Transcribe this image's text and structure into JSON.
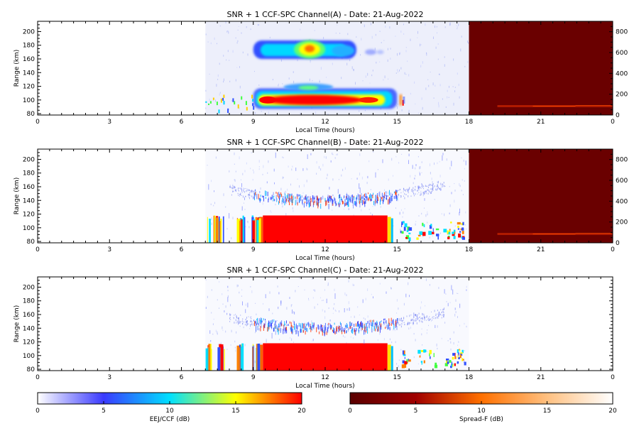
{
  "chart_data": [
    {
      "type": "heatmap",
      "title": "SNR + 1 CCF-SPC Channel(A) - Date: 21-Aug-2022",
      "xlabel": "Local Time (hours)",
      "ylabel": "Range (km)",
      "xlim": [
        0,
        24
      ],
      "ylim": [
        78,
        215
      ],
      "x_ticks": [
        "0",
        "3",
        "6",
        "9",
        "12",
        "15",
        "18",
        "21",
        "0"
      ],
      "y_ticks": [
        "80",
        "100",
        "120",
        "140",
        "160",
        "180",
        "200"
      ],
      "right_axis": {
        "ylim": [
          0,
          900
        ],
        "ticks": [
          "0",
          "200",
          "400",
          "600",
          "800"
        ]
      },
      "colormap": "EEJ/CCF (dB)",
      "spread_f_block": {
        "x_start": 18,
        "x_end": 24
      },
      "features": [
        {
          "kind": "eej_layer",
          "x": [
            7.0,
            15.3
          ],
          "y": [
            87,
            115
          ],
          "peak_db": 20
        },
        {
          "kind": "upper_cloud",
          "x": [
            9.0,
            14.3
          ],
          "y": [
            160,
            190
          ],
          "peak_db": 18,
          "peak_x": 11.3
        }
      ]
    },
    {
      "type": "heatmap",
      "title": "SNR + 1 CCF-SPC Channel(B) - Date: 21-Aug-2022",
      "xlabel": "Local Time (hours)",
      "ylabel": "Range (km)",
      "xlim": [
        0,
        24
      ],
      "ylim": [
        78,
        215
      ],
      "x_ticks": [
        "0",
        "3",
        "6",
        "9",
        "12",
        "15",
        "18",
        "21",
        "0"
      ],
      "y_ticks": [
        "80",
        "100",
        "120",
        "140",
        "160",
        "180",
        "200"
      ],
      "right_axis": {
        "ylim": [
          0,
          900
        ],
        "ticks": [
          "0",
          "200",
          "400",
          "600",
          "800"
        ]
      },
      "colormap": "EEJ/CCF (dB)",
      "spread_f_block": {
        "x_start": 18,
        "x_end": 24
      },
      "features": [
        {
          "kind": "eej_layer",
          "x": [
            7.0,
            17.8
          ],
          "y": [
            82,
            118
          ],
          "peak_db": 20
        },
        {
          "kind": "echo_arc",
          "x": [
            8.0,
            17.0
          ],
          "y": [
            135,
            165
          ]
        }
      ]
    },
    {
      "type": "heatmap",
      "title": "SNR + 1 CCF-SPC Channel(C) - Date: 21-Aug-2022",
      "xlabel": "Local Time (hours)",
      "ylabel": "Range (km)",
      "xlim": [
        0,
        24
      ],
      "ylim": [
        78,
        215
      ],
      "x_ticks": [
        "0",
        "3",
        "6",
        "9",
        "12",
        "15",
        "18",
        "21",
        "0"
      ],
      "y_ticks": [
        "80",
        "100",
        "120",
        "140",
        "160",
        "180",
        "200"
      ],
      "colormap": "EEJ/CCF (dB)",
      "features": [
        {
          "kind": "eej_layer",
          "x": [
            7.0,
            17.8
          ],
          "y": [
            82,
            118
          ],
          "peak_db": 20
        },
        {
          "kind": "echo_arc",
          "x": [
            8.0,
            17.0
          ],
          "y": [
            135,
            165
          ]
        }
      ]
    }
  ],
  "colorbars": [
    {
      "label": "EEJ/CCF (dB)",
      "range": [
        0,
        20
      ],
      "ticks": [
        "0",
        "5",
        "10",
        "15",
        "20"
      ],
      "colors": [
        "#ffffff",
        "#3a3aff",
        "#00e0ff",
        "#ffff00",
        "#ff0000"
      ]
    },
    {
      "label": "Spread-F (dB)",
      "range": [
        0,
        20
      ],
      "ticks": [
        "0",
        "5",
        "10",
        "15",
        "20"
      ],
      "colors": [
        "#5a0000",
        "#a00000",
        "#ff7000",
        "#ffc080",
        "#ffffff"
      ]
    }
  ]
}
